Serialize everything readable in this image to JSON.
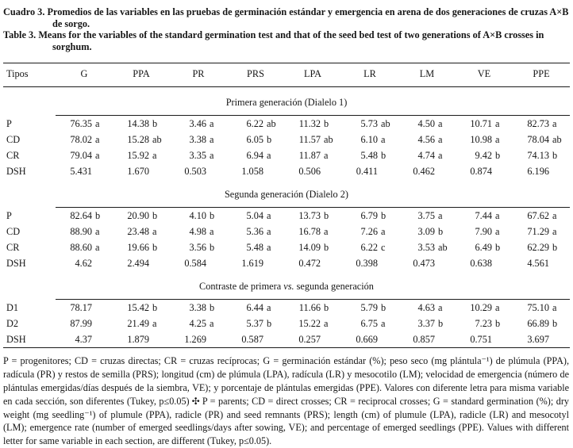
{
  "title": {
    "es_label": "Cuadro 3.",
    "es_text": "Promedios de las variables en las pruebas de germinación estándar y emergencia en arena de dos generaciones de cruzas A×B de sorgo.",
    "en_label": "Table 3.",
    "en_text": "Means for the variables of the standard germination test and that of the seed bed test of two generations of A×B crosses in sorghum."
  },
  "table": {
    "columns": [
      "Tipos",
      "G",
      "PPA",
      "PR",
      "PRS",
      "LPA",
      "LR",
      "LM",
      "VE",
      "PPE"
    ],
    "sections": [
      {
        "title_parts": [
          "Primera generación (Dialelo 1)",
          "",
          ""
        ],
        "rows": [
          {
            "label": "P",
            "values": [
              "76.35 a",
              "14.38 b",
              "3.46 a",
              "6.22 ab",
              "11.32 b",
              "5.73 ab",
              "4.50 a",
              "10.71 a",
              "82.73 a"
            ]
          },
          {
            "label": "CD",
            "values": [
              "78.02 a",
              "15.28 ab",
              "3.38 a",
              "6.05 b",
              "11.57 ab",
              "6.10 a",
              "4.56 a",
              "10.98 a",
              "78.04 ab"
            ]
          },
          {
            "label": "CR",
            "values": [
              "79.04 a",
              "15.92 a",
              "3.35 a",
              "6.94 a",
              "11.87 a",
              "5.48 b",
              "4.74 a",
              "9.42 b",
              "74.13 b"
            ]
          },
          {
            "label": "DSH",
            "values": [
              "5.431",
              "1.670",
              "0.503",
              "1.058",
              "0.506",
              "0.411",
              "0.462",
              "0.874",
              "6.196"
            ]
          }
        ]
      },
      {
        "title_parts": [
          "Segunda generación (Dialelo 2)",
          "",
          ""
        ],
        "rows": [
          {
            "label": "P",
            "values": [
              "82.64 b",
              "20.90 b",
              "4.10 b",
              "5.04 a",
              "13.73 b",
              "6.79 b",
              "3.75 a",
              "7.44 a",
              "67.62 a"
            ]
          },
          {
            "label": "CD",
            "values": [
              "88.90 a",
              "23.48 a",
              "4.98 a",
              "5.36 a",
              "16.78 a",
              "7.26 a",
              "3.09 b",
              "7.90 a",
              "71.29 a"
            ]
          },
          {
            "label": "CR",
            "values": [
              "88.60 a",
              "19.66 b",
              "3.56 b",
              "5.48 a",
              "14.09 b",
              "6.22 c",
              "3.53 ab",
              "6.49 b",
              "62.29 b"
            ]
          },
          {
            "label": "DSH",
            "values": [
              "4.62",
              "2.494",
              "0.584",
              "1.619",
              "0.472",
              "0.398",
              "0.473",
              "0.638",
              "4.561"
            ]
          }
        ]
      },
      {
        "title_parts": [
          "Contraste de primera ",
          "vs.",
          " segunda generación"
        ],
        "rows": [
          {
            "label": "D1",
            "values": [
              "78.17",
              "15.42 b",
              "3.38 b",
              "6.44 a",
              "11.66 b",
              "5.79 b",
              "4.63 a",
              "10.29 a",
              "75.10 a"
            ]
          },
          {
            "label": "D2",
            "values": [
              "87.99",
              "21.49 a",
              "4.25 a",
              "5.37 b",
              "15.22 a",
              "6.75 a",
              "3.37 b",
              "7.23 b",
              "66.89 b"
            ]
          },
          {
            "label": "DSH",
            "values": [
              "4.37",
              "1.879",
              "1.269",
              "0.587",
              "0.257",
              "0.669",
              "0.857",
              "0.751",
              "3.697"
            ]
          }
        ]
      }
    ]
  },
  "footnote": {
    "es": "P = progenitores; CD = cruzas directas; CR = cruzas recíprocas; G = germinación estándar (%); peso seco (mg plántula⁻¹) de plúmula (PPA), radícula (PR) y restos de semilla (PRS); longitud (cm) de plúmula (LPA), radícula (LR) y mesocotilo (LM); velocidad de emergencia (número de plántulas emergidas/días después de la siembra, VE); y porcentaje de plántulas emergidas (PPE). Valores con diferente letra para misma variable en cada sección, son diferentes (Tukey, p≤0.05)",
    "separator": "✣",
    "en": "P = parents; CD = direct crosses; CR = reciprocal crosses; G = standard germination (%); dry weight (mg seedling⁻¹) of plumule (PPA), radicle (PR) and seed remnants (PRS); length (cm) of plumule (LPA), radicle (LR) and mesocotyl (LM); emergence rate (number of emerged seedlings/days after sowing, VE); and percentage of emerged seedlings (PPE). Values with different letter for same variable in each section, are different (Tukey, p≤0.05)."
  }
}
